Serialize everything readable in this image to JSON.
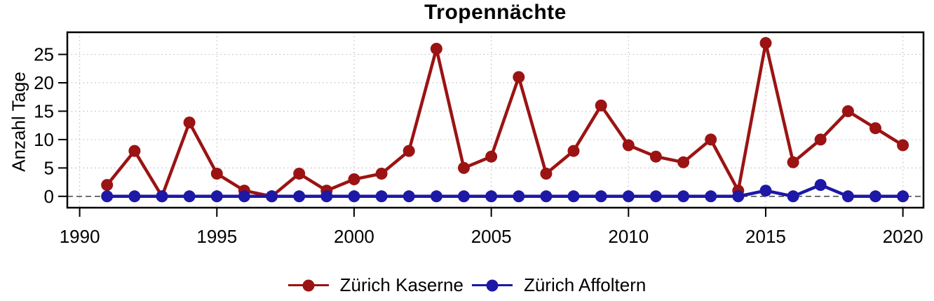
{
  "chart_data": {
    "type": "line",
    "title": "Tropennächte",
    "xlabel": "",
    "ylabel": "Anzahl Tage",
    "x_ticks": [
      1990,
      1995,
      2000,
      2005,
      2010,
      2015,
      2020
    ],
    "y_ticks": [
      0,
      5,
      10,
      15,
      20,
      25
    ],
    "xlim": [
      1989.55,
      2020.75
    ],
    "ylim": [
      -2,
      28.9
    ],
    "grid": "dotted",
    "zero_line_style": "dashed",
    "legend_position": "bottom",
    "background_color": "#FFFFFF",
    "grid_color": "#C0C0C0",
    "zero_line_color": "#404040",
    "axis_color": "#000000",
    "x": [
      1991,
      1992,
      1993,
      1994,
      1995,
      1996,
      1997,
      1998,
      1999,
      2000,
      2001,
      2002,
      2003,
      2004,
      2005,
      2006,
      2007,
      2008,
      2009,
      2010,
      2011,
      2012,
      2013,
      2014,
      2015,
      2016,
      2017,
      2018,
      2019,
      2020
    ],
    "series": [
      {
        "name": "Zürich Kaserne",
        "color": "#9B1313",
        "values": [
          2,
          8,
          0,
          13,
          4,
          1,
          0,
          4,
          1,
          3,
          4,
          8,
          26,
          5,
          7,
          21,
          4,
          8,
          16,
          9,
          7,
          6,
          10,
          1,
          27,
          6,
          10,
          15,
          12,
          9
        ]
      },
      {
        "name": "Zürich Affoltern",
        "color": "#1D18A6",
        "values": [
          0,
          0,
          0,
          0,
          0,
          0,
          0,
          0,
          0,
          0,
          0,
          0,
          0,
          0,
          0,
          0,
          0,
          0,
          0,
          0,
          0,
          0,
          0,
          0,
          1,
          0,
          2,
          0,
          0,
          0
        ]
      }
    ]
  }
}
